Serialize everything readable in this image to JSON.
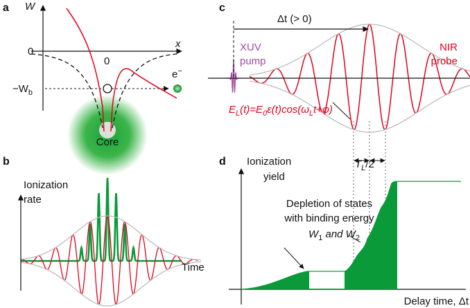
{
  "panel_a": {
    "label": "a",
    "y_axis": "W",
    "x_axis": "x",
    "y_zero": "0",
    "x_zero": "0",
    "binding": "−W",
    "binding_sub": "b",
    "electron": "e",
    "electron_sup": "−",
    "core": "Core"
  },
  "panel_b": {
    "label": "b",
    "y_axis": [
      "Ionization",
      "rate"
    ],
    "x_axis": "Time"
  },
  "panel_c": {
    "label": "c",
    "delay": "Δt (> 0)",
    "pump": [
      "XUV",
      "pump"
    ],
    "probe": [
      "NIR",
      "probe"
    ],
    "formula": [
      "E",
      "L",
      "(t)=E",
      "0",
      "ε(t)cos(ω",
      "L",
      "t+φ)"
    ]
  },
  "panel_d": {
    "label": "d",
    "y_axis": [
      "Ionization",
      "yield"
    ],
    "period": [
      "T",
      "L",
      "/2"
    ],
    "note": [
      "Depletion of states",
      "with binding energy",
      "W",
      "1",
      " and W",
      "2"
    ],
    "x_axis": "Delay time, Δt"
  }
}
